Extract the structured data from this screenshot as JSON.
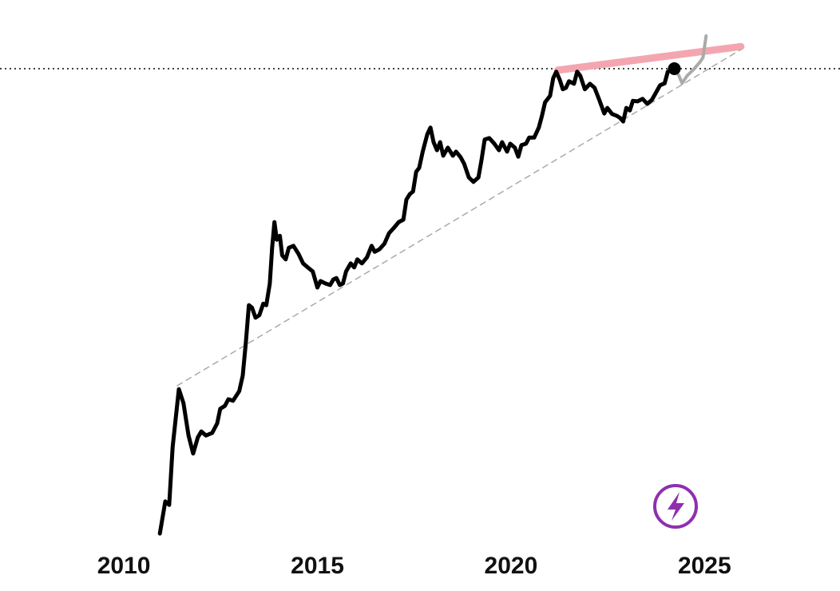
{
  "chart_data": {
    "type": "line",
    "xlim": [
      2006.8,
      2028.5
    ],
    "ylim": [
      0,
      100
    ],
    "xticks": [
      2010,
      2015,
      2020,
      2025
    ],
    "reference_line": {
      "value": 92.7,
      "color": "#000000",
      "style": "dotted"
    },
    "series": [
      {
        "color": "#000000",
        "width": 5,
        "style": "solid",
        "end_marker": true,
        "x": [
          2010.93,
          2011.07,
          2011.17,
          2011.26,
          2011.42,
          2011.54,
          2011.67,
          2011.79,
          2011.91,
          2012.0,
          2012.12,
          2012.28,
          2012.41,
          2012.49,
          2012.61,
          2012.7,
          2012.82,
          2012.98,
          2013.07,
          2013.15,
          2013.23,
          2013.31,
          2013.4,
          2013.5,
          2013.6,
          2013.68,
          2013.77,
          2013.83,
          2013.89,
          2013.95,
          2014.03,
          2014.09,
          2014.18,
          2014.26,
          2014.38,
          2014.51,
          2014.63,
          2014.75,
          2014.88,
          2015.0,
          2015.08,
          2015.21,
          2015.33,
          2015.41,
          2015.49,
          2015.58,
          2015.66,
          2015.74,
          2015.86,
          2015.95,
          2016.03,
          2016.15,
          2016.28,
          2016.4,
          2016.48,
          2016.6,
          2016.73,
          2016.85,
          2016.98,
          2017.1,
          2017.22,
          2017.3,
          2017.39,
          2017.47,
          2017.55,
          2017.63,
          2017.72,
          2017.84,
          2017.92,
          2018.0,
          2018.09,
          2018.17,
          2018.25,
          2018.37,
          2018.5,
          2018.58,
          2018.7,
          2018.79,
          2018.91,
          2019.03,
          2019.16,
          2019.24,
          2019.32,
          2019.44,
          2019.57,
          2019.69,
          2019.77,
          2019.9,
          2019.98,
          2020.1,
          2020.19,
          2020.27,
          2020.39,
          2020.47,
          2020.6,
          2020.72,
          2020.8,
          2020.88,
          2021.01,
          2021.09,
          2021.17,
          2021.26,
          2021.34,
          2021.42,
          2021.5,
          2021.63,
          2021.71,
          2021.79,
          2021.91,
          2022.04,
          2022.16,
          2022.28,
          2022.41,
          2022.49,
          2022.61,
          2022.74,
          2022.82,
          2022.9,
          2022.98,
          2023.07,
          2023.15,
          2023.27,
          2023.4,
          2023.52,
          2023.64,
          2023.72,
          2023.85,
          2023.97,
          2024.05,
          2024.22
        ],
        "values": [
          0.3,
          6.7,
          6.0,
          17.5,
          29.0,
          26.2,
          19.8,
          16.2,
          19.4,
          20.6,
          19.8,
          20.3,
          22.2,
          25.1,
          25.7,
          27.0,
          26.7,
          28.6,
          31.7,
          38.1,
          45.7,
          45.2,
          43.2,
          43.7,
          46.0,
          45.7,
          50.0,
          57.1,
          62.2,
          58.7,
          59.5,
          55.6,
          54.8,
          57.1,
          57.5,
          55.9,
          54.0,
          53.2,
          52.4,
          49.2,
          50.5,
          50.0,
          49.7,
          50.8,
          51.1,
          49.7,
          50.0,
          52.4,
          54.0,
          53.2,
          54.8,
          54.0,
          55.2,
          57.5,
          56.3,
          56.8,
          57.9,
          60.0,
          61.1,
          62.2,
          62.7,
          66.7,
          67.8,
          68.3,
          72.2,
          73.0,
          76.2,
          79.7,
          81.0,
          78.1,
          76.5,
          78.1,
          75.4,
          77.0,
          75.4,
          76.2,
          75.1,
          73.8,
          71.1,
          70.2,
          71.1,
          74.6,
          78.6,
          78.9,
          77.8,
          76.5,
          78.1,
          76.2,
          77.8,
          77.0,
          75.2,
          77.5,
          77.8,
          79.0,
          79.0,
          81.0,
          83.3,
          86.0,
          87.3,
          90.8,
          92.1,
          90.5,
          88.6,
          88.9,
          90.2,
          89.7,
          92.1,
          91.3,
          88.6,
          89.7,
          88.9,
          86.5,
          83.8,
          84.9,
          83.7,
          83.3,
          82.9,
          82.2,
          84.9,
          84.4,
          86.3,
          86.2,
          86.7,
          85.7,
          86.5,
          87.6,
          89.4,
          89.8,
          92.1,
          92.7
        ]
      },
      {
        "color": "#aaaaaa",
        "width": 4,
        "style": "solid",
        "x": [
          2024.22,
          2024.34,
          2024.42,
          2024.55,
          2024.71,
          2024.88,
          2024.96,
          2025.04
        ],
        "values": [
          92.7,
          91.3,
          89.8,
          91.3,
          92.5,
          94.0,
          94.9,
          99.2
        ]
      },
      {
        "color": "#f4a6b0",
        "width": 9,
        "style": "solid",
        "x": [
          2021.21,
          2025.94
        ],
        "values": [
          92.4,
          97.1
        ]
      },
      {
        "color": "#aaaaaa",
        "width": 1.5,
        "style": "dashed",
        "x": [
          2011.38,
          2025.94
        ],
        "values": [
          29.7,
          96.5
        ]
      }
    ]
  }
}
